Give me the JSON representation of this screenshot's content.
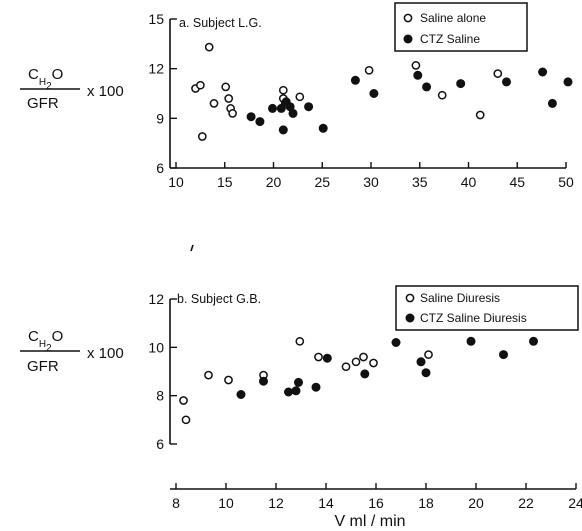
{
  "chart_data": [
    {
      "type": "scatter",
      "title": "a. Subject  L.G.",
      "ylabel": {
        "top": "C",
        "sub": "H",
        "sub2": "2",
        "tail": "O",
        "bottom": "GFR",
        "suffix": "x 100"
      },
      "xlabel": "",
      "xlim": [
        10,
        50
      ],
      "ylim": [
        6,
        15
      ],
      "xticks": [
        10,
        15,
        20,
        25,
        30,
        35,
        40,
        45,
        50
      ],
      "yticks": [
        6,
        9,
        12,
        15
      ],
      "legend_position": "top-right",
      "series": [
        {
          "name": "Saline alone",
          "marker": "open-circle",
          "x": [
            12,
            12.5,
            12.7,
            13.4,
            13.9,
            15.1,
            15.4,
            15.6,
            15.8,
            21,
            21,
            21.2,
            22.7,
            29.8,
            34.6,
            37.3,
            41.2,
            43
          ],
          "y": [
            10.8,
            11,
            7.9,
            13.3,
            9.9,
            10.9,
            10.2,
            9.6,
            9.3,
            10.7,
            10.2,
            9.9,
            10.3,
            11.9,
            12.2,
            10.4,
            9.2,
            11.7
          ]
        },
        {
          "name": "CTZ Saline",
          "marker": "filled-circle",
          "x": [
            17.7,
            18.6,
            19.9,
            20.8,
            21,
            21.3,
            21.7,
            22,
            23.6,
            25.1,
            28.4,
            30.3,
            34.8,
            35.7,
            39.2,
            43.9,
            47.6,
            48.6,
            50.2
          ],
          "y": [
            9.1,
            8.8,
            9.6,
            9.6,
            8.3,
            10,
            9.7,
            9.3,
            9.7,
            8.4,
            11.3,
            10.5,
            11.6,
            10.9,
            11.1,
            11.2,
            11.8,
            9.9,
            11.2
          ]
        }
      ]
    },
    {
      "type": "scatter",
      "title": "b. Subject  G.B.",
      "ylabel": {
        "top": "C",
        "sub": "H",
        "sub2": "2",
        "tail": "O",
        "bottom": "GFR",
        "suffix": "x 100"
      },
      "xlabel": "V ml / min",
      "xlim": [
        8,
        24
      ],
      "ylim": [
        6,
        12
      ],
      "xticks": [
        8,
        10,
        12,
        14,
        16,
        18,
        20,
        22,
        24
      ],
      "yticks": [
        6,
        8,
        10,
        12
      ],
      "legend_position": "top-right",
      "series": [
        {
          "name": "Saline Diuresis",
          "marker": "open-circle",
          "x": [
            8.3,
            8.4,
            9.3,
            10.1,
            11.5,
            12.95,
            13.7,
            14.8,
            15.2,
            15.5,
            15.9,
            18.1
          ],
          "y": [
            7.8,
            7,
            8.85,
            8.65,
            8.85,
            10.25,
            9.6,
            9.2,
            9.4,
            9.6,
            9.35,
            9.7
          ]
        },
        {
          "name": "CTZ Saline Diuresis",
          "marker": "filled-circle",
          "x": [
            10.6,
            11.5,
            12.5,
            12.8,
            12.9,
            13.6,
            14.05,
            15.55,
            16.8,
            17.8,
            18,
            19.8,
            21.1,
            22.3
          ],
          "y": [
            8.05,
            8.6,
            8.15,
            8.2,
            8.55,
            8.35,
            9.55,
            8.9,
            10.2,
            9.4,
            8.95,
            10.25,
            9.7,
            10.25
          ]
        }
      ]
    }
  ]
}
